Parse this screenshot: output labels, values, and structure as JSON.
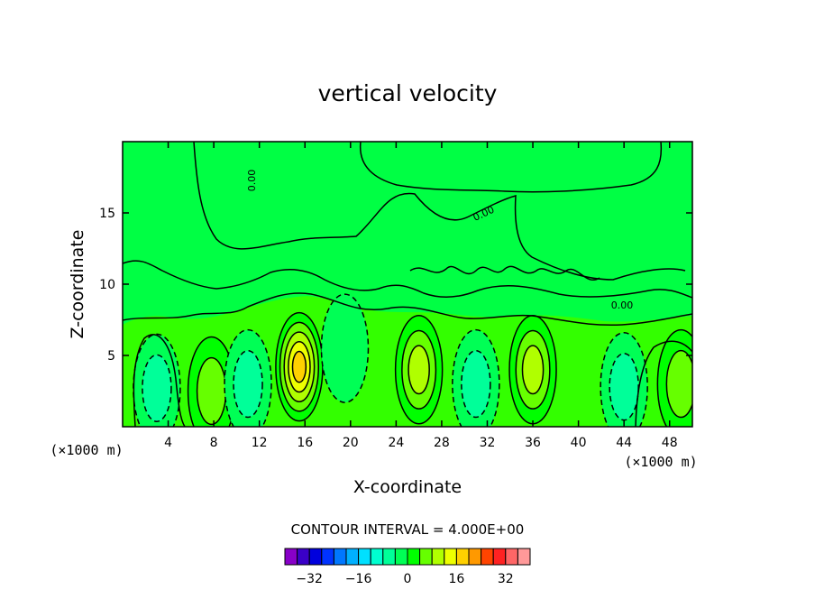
{
  "chart_data": {
    "type": "heatmap",
    "title": "vertical velocity",
    "xlabel": "X-coordinate",
    "ylabel": "Z-coordinate",
    "x_unit_label": "(×1000 m)",
    "xlim": [
      0,
      50
    ],
    "ylim": [
      0,
      20
    ],
    "xticks": [
      "4",
      "8",
      "12",
      "16",
      "20",
      "24",
      "28",
      "32",
      "36",
      "40",
      "44",
      "48"
    ],
    "xtick_values": [
      4,
      8,
      12,
      16,
      20,
      24,
      28,
      32,
      36,
      40,
      44,
      48
    ],
    "yticks": [
      "5",
      "10",
      "15"
    ],
    "ytick_values": [
      5,
      10,
      15
    ],
    "contour_interval_text": "CONTOUR INTERVAL = 4.000E+00",
    "contour_interval": 4,
    "contour_line_labels": [
      "0.00",
      "0.00",
      "0.00"
    ],
    "colorbar": {
      "levels": [
        -36,
        -32,
        -28,
        -24,
        -20,
        -16,
        -12,
        -8,
        -4,
        0,
        4,
        8,
        12,
        16,
        20,
        24,
        28,
        32,
        36
      ],
      "colors": [
        "#8800c8",
        "#3a00c8",
        "#0000dd",
        "#0033ff",
        "#0077ff",
        "#00b0ff",
        "#00e0ff",
        "#00ffd0",
        "#00ff99",
        "#00ff55",
        "#00ff00",
        "#66ff00",
        "#b0ff00",
        "#eeff00",
        "#ffd000",
        "#ff9900",
        "#ff4400",
        "#ff2222",
        "#ff6666",
        "#ff9999"
      ],
      "tick_labels": [
        "−32",
        "−16",
        "0",
        "16",
        "32"
      ],
      "tick_values": [
        -32,
        -16,
        0,
        16,
        32
      ]
    },
    "features": [
      {
        "x": 3.0,
        "z": 2.7,
        "value": -8
      },
      {
        "x": 7.8,
        "z": 2.5,
        "value": 8
      },
      {
        "x": 11.0,
        "z": 3.0,
        "value": -8
      },
      {
        "x": 15.5,
        "z": 4.2,
        "value": 20
      },
      {
        "x": 19.5,
        "z": 5.5,
        "value": -4
      },
      {
        "x": 26.0,
        "z": 4.0,
        "value": 12
      },
      {
        "x": 31.0,
        "z": 3.0,
        "value": -8
      },
      {
        "x": 36.0,
        "z": 4.0,
        "value": 12
      },
      {
        "x": 44.0,
        "z": 2.8,
        "value": -8
      },
      {
        "x": 49.0,
        "z": 3.0,
        "value": 8
      }
    ]
  }
}
